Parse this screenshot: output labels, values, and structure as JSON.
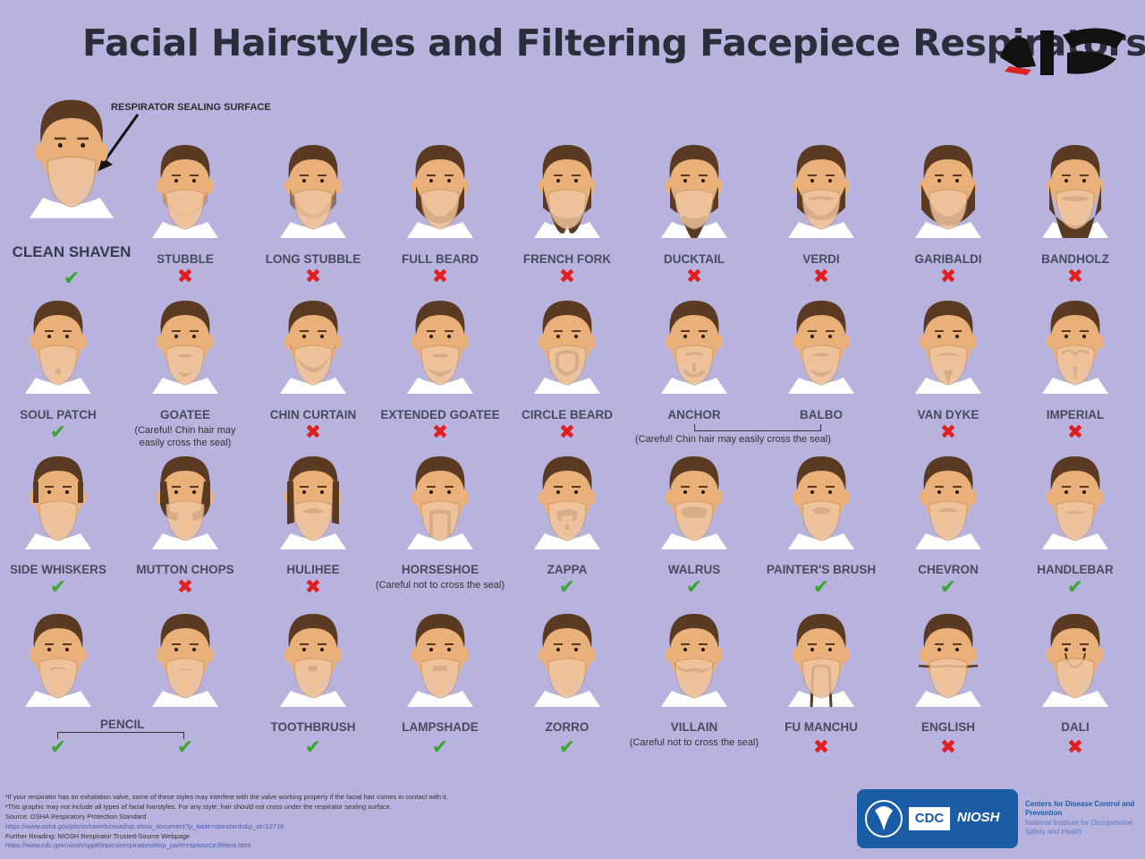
{
  "title": "Facial Hairstyles and Filtering Facepiece Respirators",
  "logo_text": "ركنا",
  "seal_label": "RESPIRATOR SEALING SURFACE",
  "colors": {
    "background": "#b7b3de",
    "skin": "#eab07a",
    "hair": "#5a3a22",
    "mask": "#f2c7a0",
    "check": "#3aa531",
    "cross": "#e02020",
    "cdc_blue": "#1b5ca6"
  },
  "styles": [
    {
      "id": "clean-shaven",
      "label": "CLEAN SHAVEN",
      "ok": true,
      "beard": "none"
    },
    {
      "id": "stubble",
      "label": "STUBBLE",
      "ok": false,
      "beard": "stubble"
    },
    {
      "id": "long-stubble",
      "label": "LONG STUBBLE",
      "ok": false,
      "beard": "stubble-dark"
    },
    {
      "id": "full-beard",
      "label": "FULL BEARD",
      "ok": false,
      "beard": "full"
    },
    {
      "id": "french-fork",
      "label": "FRENCH FORK",
      "ok": false,
      "beard": "fork"
    },
    {
      "id": "ducktail",
      "label": "DUCKTAIL",
      "ok": false,
      "beard": "ducktail"
    },
    {
      "id": "verdi",
      "label": "VERDI",
      "ok": false,
      "beard": "verdi"
    },
    {
      "id": "garibaldi",
      "label": "GARIBALDI",
      "ok": false,
      "beard": "full-wide"
    },
    {
      "id": "bandholz",
      "label": "BANDHOLZ",
      "ok": false,
      "beard": "long"
    },
    {
      "id": "soul-patch",
      "label": "SOUL PATCH",
      "ok": true,
      "beard": "soul"
    },
    {
      "id": "goatee",
      "label": "GOATEE",
      "ok": null,
      "note": "(Careful! Chin hair may easily cross the seal)",
      "beard": "goatee"
    },
    {
      "id": "chin-curtain",
      "label": "CHIN CURTAIN",
      "ok": false,
      "beard": "curtain"
    },
    {
      "id": "extended-goatee",
      "label": "EXTENDED GOATEE",
      "ok": false,
      "beard": "ext-goatee"
    },
    {
      "id": "circle-beard",
      "label": "CIRCLE BEARD",
      "ok": false,
      "beard": "circle"
    },
    {
      "id": "anchor",
      "label": "ANCHOR",
      "ok": null,
      "beard": "anchor"
    },
    {
      "id": "balbo",
      "label": "BALBO",
      "ok": null,
      "beard": "balbo"
    },
    {
      "id": "van-dyke",
      "label": "VAN DYKE",
      "ok": false,
      "beard": "vandyke"
    },
    {
      "id": "imperial",
      "label": "IMPERIAL",
      "ok": false,
      "beard": "imperial"
    },
    {
      "id": "side-whiskers",
      "label": "SIDE WHISKERS",
      "ok": true,
      "beard": "sideburns"
    },
    {
      "id": "mutton-chops",
      "label": "MUTTON CHOPS",
      "ok": false,
      "beard": "mutton"
    },
    {
      "id": "hulihee",
      "label": "HULIHEE",
      "ok": false,
      "beard": "hulihee"
    },
    {
      "id": "horseshoe",
      "label": "HORSESHOE",
      "ok": null,
      "note": "(Careful not to cross the seal)",
      "beard": "horseshoe"
    },
    {
      "id": "zappa",
      "label": "ZAPPA",
      "ok": true,
      "beard": "zappa"
    },
    {
      "id": "walrus",
      "label": "WALRUS",
      "ok": true,
      "beard": "walrus"
    },
    {
      "id": "painters-brush",
      "label": "PAINTER'S BRUSH",
      "ok": true,
      "beard": "brush"
    },
    {
      "id": "chevron",
      "label": "CHEVRON",
      "ok": true,
      "beard": "chevron"
    },
    {
      "id": "handlebar",
      "label": "HANDLEBAR",
      "ok": true,
      "beard": "handlebar"
    },
    {
      "id": "pencil-a",
      "label": "",
      "ok": true,
      "beard": "pencil"
    },
    {
      "id": "pencil-b",
      "label": "",
      "ok": true,
      "beard": "pencil-thin"
    },
    {
      "id": "toothbrush",
      "label": "TOOTHBRUSH",
      "ok": true,
      "beard": "toothbrush"
    },
    {
      "id": "lampshade",
      "label": "LAMPSHADE",
      "ok": true,
      "beard": "lampshade"
    },
    {
      "id": "zorro",
      "label": "ZORRO",
      "ok": true,
      "beard": "zorro"
    },
    {
      "id": "villain",
      "label": "VILLAIN",
      "ok": null,
      "note": "(Careful not to cross the seal)",
      "beard": "villain"
    },
    {
      "id": "fu-manchu",
      "label": "FU MANCHU",
      "ok": false,
      "beard": "fumanchu"
    },
    {
      "id": "english",
      "label": "ENGLISH",
      "ok": false,
      "beard": "english"
    },
    {
      "id": "dali",
      "label": "DALI",
      "ok": false,
      "beard": "dali"
    }
  ],
  "groups": {
    "anchor_balbo_note": "(Careful! Chin hair may easily cross the seal)",
    "pencil_label": "PENCIL"
  },
  "footer": {
    "line1": "¹If your respirator has an exhalation valve, some of these styles may interfere with the valve working properly if the facial hair comes in contact with it.",
    "line2": "²This graphic may not include all types of facial hairstyles. For any style, hair should not cross under the respirator sealing surface.",
    "line3": "Source: OSHA Respiratory Protection Standard",
    "line4": "https://www.osha.gov/pls/oshaweb/owadisp.show_document?p_table=standards&p_id=12716",
    "line5": "Further Reading: NIOSH Respirator Trusted-Source Webpage",
    "line6": "https://www.cdc.gov/niosh/npptl/topics/respirators/disp_part/respsource3fittest.html"
  },
  "agency": {
    "cdc_mark": "CDC",
    "niosh_mark": "NIOSH",
    "line1": "Centers for Disease Control and Prevention",
    "line2": "National Institute for Occupational Safety and Health"
  }
}
